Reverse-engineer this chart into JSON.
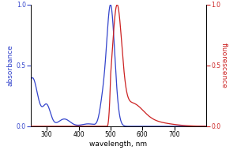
{
  "title": "",
  "xlabel": "wavelength, nm",
  "ylabel_left": "absorbance",
  "ylabel_right": "fluorescence",
  "xlim": [
    250,
    800
  ],
  "ylim": [
    0,
    1.0
  ],
  "xticks": [
    300,
    400,
    500,
    600,
    700
  ],
  "yticks_left": [
    0,
    0.5,
    1.0
  ],
  "yticks_right": [
    0,
    0.5,
    1.0
  ],
  "blue_color": "#3344cc",
  "red_color": "#cc2222",
  "background_color": "#ffffff",
  "figsize": [
    3.0,
    1.95
  ],
  "dpi": 100,
  "linewidth": 0.9,
  "xlabel_fontsize": 6.5,
  "ylabel_fontsize": 6.5,
  "tick_fontsize": 5.5
}
